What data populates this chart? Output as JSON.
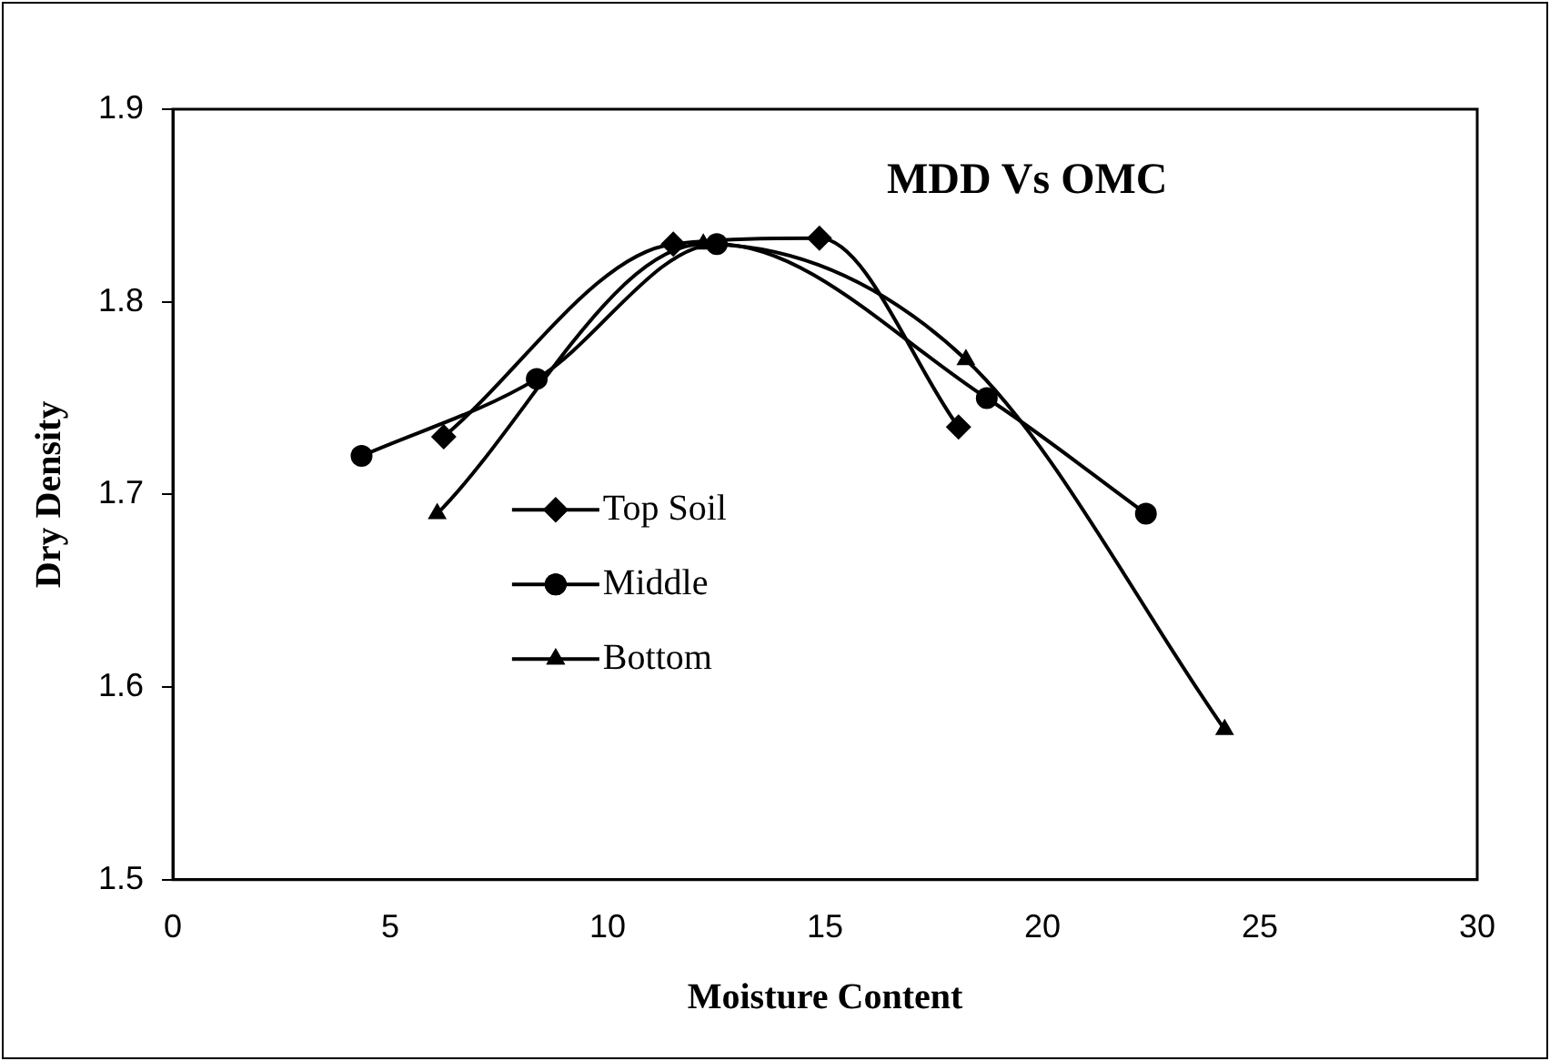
{
  "chart_data": {
    "type": "line",
    "title": "MDD Vs OMC",
    "xlabel": "Moisture Content",
    "ylabel": "Dry Density",
    "xlim": [
      0,
      30
    ],
    "xticks": [
      0,
      5,
      10,
      15,
      20,
      25,
      30
    ],
    "ylim": [
      1.5,
      1.9
    ],
    "yticks": [
      1.5,
      1.6,
      1.7,
      1.8,
      1.9
    ],
    "grid": false,
    "legend": "left",
    "line_style": "solid",
    "series": [
      {
        "name": "Top Soil",
        "color": "#000000",
        "marker": "diamond",
        "x": [
          6.23,
          11.51,
          14.87,
          18.07
        ],
        "values": [
          1.73,
          1.83,
          1.833,
          1.735
        ]
      },
      {
        "name": "Middle",
        "color": "#000000",
        "marker": "circle",
        "x": [
          4.34,
          8.37,
          12.51,
          18.72,
          22.38
        ],
        "values": [
          1.72,
          1.76,
          1.83,
          1.75,
          1.69
        ]
      },
      {
        "name": "Bottom",
        "color": "#000000",
        "marker": "triangle",
        "x": [
          6.08,
          12.2,
          18.24,
          24.19
        ],
        "values": [
          1.69,
          1.83,
          1.77,
          1.578
        ]
      }
    ]
  }
}
